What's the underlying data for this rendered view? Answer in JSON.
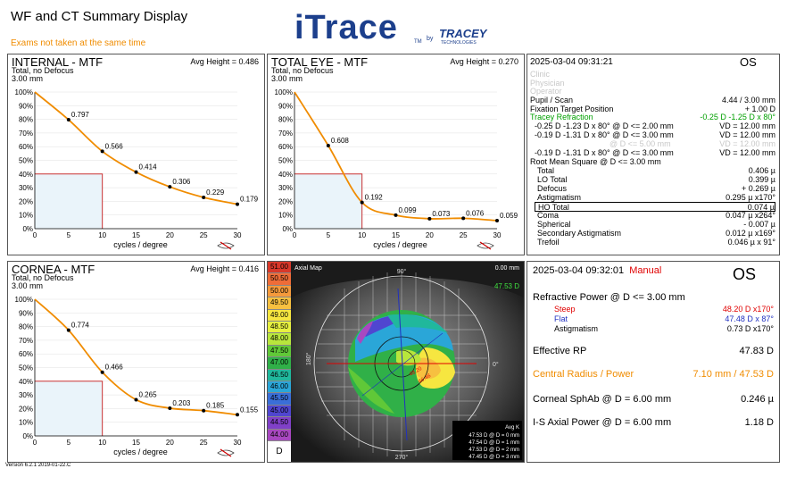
{
  "header": {
    "title": "WF and CT Summary Display",
    "warning": "Exams not taken at the same time",
    "logo_text": "iTrace",
    "logo_tm": "TM",
    "logo_by": "by",
    "brand": "TRACEY",
    "brand_sub": "TECHNOLOGIES",
    "version": "Version 6.2.1 2019-01-22.C"
  },
  "colors": {
    "curve": "#f08c00",
    "orange_text": "#f08c00",
    "green_text": "#00a000",
    "steep": "#e00000",
    "flat": "#2030c0",
    "manual": "#e00000"
  },
  "mtf_axes": {
    "x_label": "cycles / degree",
    "x_ticks": [
      "0",
      "5",
      "10",
      "15",
      "20",
      "25",
      "30"
    ],
    "y_ticks": [
      "100%",
      "90%",
      "80%",
      "70%",
      "60%",
      "50%",
      "40%",
      "30%",
      "20%",
      "10%",
      "0%"
    ]
  },
  "internal_mtf": {
    "title": "INTERNAL - MTF",
    "line1": "Total, no Defocus",
    "line2": "3.00 mm",
    "avg": "Avg Height = 0.486",
    "chart_data": {
      "type": "line",
      "x": [
        0,
        5,
        10,
        15,
        20,
        25,
        30
      ],
      "values": [
        1.0,
        0.797,
        0.566,
        0.414,
        0.306,
        0.229,
        0.179
      ],
      "labels": [
        "",
        "0.797",
        "0.566",
        "0.414",
        "0.306",
        "0.229",
        "0.179"
      ],
      "xlabel": "cycles / degree",
      "xlim": [
        0,
        30
      ],
      "ylim": [
        0,
        1
      ]
    }
  },
  "total_mtf": {
    "title": "TOTAL EYE - MTF",
    "line1": "Total, no Defocus",
    "line2": "3.00 mm",
    "avg": "Avg Height = 0.270",
    "chart_data": {
      "type": "line",
      "x": [
        0,
        5,
        10,
        15,
        20,
        25,
        30
      ],
      "values": [
        1.0,
        0.608,
        0.192,
        0.099,
        0.073,
        0.076,
        0.059
      ],
      "labels": [
        "",
        "0.608",
        "0.192",
        "0.099",
        "0.073",
        "0.076",
        "0.059"
      ],
      "xlabel": "cycles / degree",
      "xlim": [
        0,
        30
      ],
      "ylim": [
        0,
        1
      ]
    }
  },
  "cornea_mtf": {
    "title": "CORNEA - MTF",
    "line1": "Total, no Defocus",
    "line2": "3.00 mm",
    "avg": "Avg Height = 0.416",
    "chart_data": {
      "type": "line",
      "x": [
        0,
        5,
        10,
        15,
        20,
        25,
        30
      ],
      "values": [
        1.0,
        0.774,
        0.466,
        0.265,
        0.203,
        0.185,
        0.155
      ],
      "labels": [
        "",
        "0.774",
        "0.466",
        "0.265",
        "0.203",
        "0.185",
        "0.155"
      ],
      "xlabel": "cycles / degree",
      "xlim": [
        0,
        30
      ],
      "ylim": [
        0,
        1
      ]
    }
  },
  "wf_info": {
    "date": "2025-03-04  09:31:21",
    "eye": "OS",
    "clinic": "Clinic",
    "physician": "Physician",
    "operator": "Operator",
    "pupil_label": "Pupil / Scan",
    "pupil_value": "4.44 / 3.00 mm",
    "fix_label": "Fixation Target Position",
    "fix_value": "+ 1.00 D",
    "tr_label": "Tracey Refraction",
    "tr_value": "-0.25 D -1.25 D x 80°",
    "ref_rows": [
      {
        "left": "-0.25 D   -1.23 D x   80° @ D <= 2.00 mm",
        "right": "VD = 12.00 mm",
        "gray": false
      },
      {
        "left": "-0.19 D   -1.31 D x   80° @ D <= 3.00 mm",
        "right": "VD = 12.00 mm",
        "gray": false
      },
      {
        "left": "@ D <= 5.00 mm",
        "right": "VD = 12.00 mm",
        "gray": true
      },
      {
        "left": "-0.19 D   -1.31 D x   80° @ D <= 3.00 mm",
        "right": "VD = 12.00 mm",
        "gray": false
      }
    ],
    "rms_label": "Root Mean Square @ D <= 3.00 mm",
    "rms_rows": [
      {
        "label": "Total",
        "value": "0.406 µ"
      },
      {
        "label": "LO Total",
        "value": "0.399 µ"
      },
      {
        "label": "Defocus",
        "value": "+ 0.269 µ"
      },
      {
        "label": "Astigmatism",
        "value": "0.295 µ x170°"
      },
      {
        "label": "HO Total",
        "value": "0.074 µ",
        "boxed": true
      },
      {
        "label": "Coma",
        "value": "0.047 µ x264°"
      },
      {
        "label": "Spherical",
        "value": "- 0.007 µ"
      },
      {
        "label": "Secondary Astigmatism",
        "value": "0.012 µ x169°"
      },
      {
        "label": "Trefoil",
        "value": "0.046 µ x  91°"
      }
    ]
  },
  "axial_map": {
    "title": "Axial Map",
    "scale_top": "0.00 mm",
    "value_right": "47.53 D",
    "diam_label": "D",
    "color_scale": [
      {
        "v": "51.00",
        "c": "#d8382a"
      },
      {
        "v": "50.50",
        "c": "#ee6c38"
      },
      {
        "v": "50.00",
        "c": "#f59a3c"
      },
      {
        "v": "49.50",
        "c": "#f7c040"
      },
      {
        "v": "49.00",
        "c": "#f6e640"
      },
      {
        "v": "48.50",
        "c": "#e6f040"
      },
      {
        "v": "48.00",
        "c": "#b8e63c"
      },
      {
        "v": "47.50",
        "c": "#60c838"
      },
      {
        "v": "47.00",
        "c": "#30b048"
      },
      {
        "v": "46.50",
        "c": "#20b89c"
      },
      {
        "v": "46.00",
        "c": "#2aa6d8"
      },
      {
        "v": "45.50",
        "c": "#3a6ed8"
      },
      {
        "v": "45.00",
        "c": "#5046d0"
      },
      {
        "v": "44.50",
        "c": "#8040c8"
      },
      {
        "v": "44.00",
        "c": "#a848c0"
      }
    ],
    "deg_labels": [
      "90°",
      "180°",
      "0°",
      "270°"
    ],
    "avgk_title": "Avg K",
    "avgk": [
      "47.53 D @ D = 0 mm",
      "47.54 D @ D = 1 mm",
      "47.53 D @ D = 2 mm",
      "47.45 D @ D = 3 mm"
    ],
    "k_marks": [
      "48.20",
      "46.46"
    ]
  },
  "ct_info": {
    "date": "2025-03-04  09:32:01",
    "manual": "Manual",
    "eye": "OS",
    "rp_label": "Refractive Power @ D <= 3.00 mm",
    "steep_label": "Steep",
    "steep_value": "48.20 D x170°",
    "flat_label": "Flat",
    "flat_value": "47.48 D x  87°",
    "astig_label": "Astigmatism",
    "astig_value": "0.73 D x170°",
    "erp_label": "Effective RP",
    "erp_value": "47.83 D",
    "cr_label": "Central Radius / Power",
    "cr_value": "7.10 mm / 47.53 D",
    "sph_label": "Corneal SphAb @ D = 6.00 mm",
    "sph_value": "0.246 µ",
    "is_label": "I-S Axial Power @ D = 6.00 mm",
    "is_value": "1.18 D"
  }
}
